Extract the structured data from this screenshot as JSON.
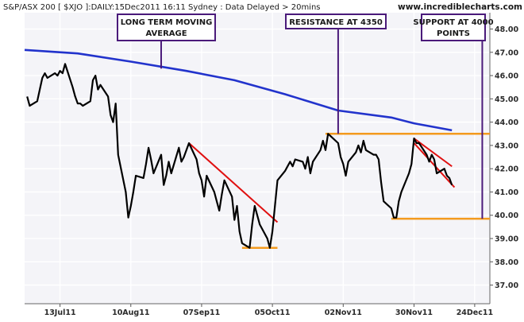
{
  "header": {
    "title": "S&P/ASX 200 [ $XJO ]:DAILY:15Dec2011 16:11 Sydney : Data Delayed > 20mins",
    "site": "www.incrediblecharts.com"
  },
  "colors": {
    "background": "#ffffff",
    "plot_background": "#f4f4f8",
    "price_line": "#000000",
    "moving_average": "#2233cc",
    "trendline": "#e01010",
    "support_resistance": "#f39a1e",
    "annotation_border": "#4a1a7a",
    "grid": "#ffffff"
  },
  "chart_data": {
    "type": "line",
    "title": "S&P/ASX 200 [ $XJO ]:DAILY:15Dec2011 16:11 Sydney : Data Delayed > 20mins",
    "xlabel": "",
    "ylabel": "",
    "x_axis": {
      "type": "date",
      "range": [
        "2011-06-29",
        "2011-12-30"
      ],
      "tick_labels": [
        "13Jul11",
        "10Aug11",
        "07Sep11",
        "05Oct11",
        "02Nov11",
        "30Nov11",
        "24Dec11"
      ],
      "tick_dates": [
        "2011-07-13",
        "2011-08-10",
        "2011-09-07",
        "2011-10-05",
        "2011-11-02",
        "2011-11-30",
        "2011-12-24"
      ]
    },
    "y_axis": {
      "position": "right",
      "range": [
        36.2,
        48.7
      ],
      "tick_values": [
        37,
        38,
        39,
        40,
        41,
        42,
        43,
        44,
        45,
        46,
        47,
        48
      ],
      "tick_labels": [
        "37.00",
        "38.00",
        "39.00",
        "40.00",
        "41.00",
        "42.00",
        "43.00",
        "44.00",
        "45.00",
        "46.00",
        "47.00",
        "48.00"
      ]
    },
    "grid": true,
    "series": [
      {
        "kind": "price",
        "points": [
          [
            "2011-06-30",
            45.1
          ],
          [
            "2011-07-01",
            44.7
          ],
          [
            "2011-07-04",
            44.9
          ],
          [
            "2011-07-05",
            45.4
          ],
          [
            "2011-07-06",
            45.9
          ],
          [
            "2011-07-07",
            46.1
          ],
          [
            "2011-07-08",
            45.9
          ],
          [
            "2011-07-11",
            46.1
          ],
          [
            "2011-07-12",
            46.0
          ],
          [
            "2011-07-13",
            46.2
          ],
          [
            "2011-07-14",
            46.1
          ],
          [
            "2011-07-15",
            46.5
          ],
          [
            "2011-07-18",
            45.5
          ],
          [
            "2011-07-19",
            45.1
          ],
          [
            "2011-07-20",
            44.8
          ],
          [
            "2011-07-21",
            44.8
          ],
          [
            "2011-07-22",
            44.7
          ],
          [
            "2011-07-25",
            44.9
          ],
          [
            "2011-07-26",
            45.8
          ],
          [
            "2011-07-27",
            46.0
          ],
          [
            "2011-07-28",
            45.4
          ],
          [
            "2011-07-29",
            45.6
          ],
          [
            "2011-08-01",
            45.1
          ],
          [
            "2011-08-02",
            44.3
          ],
          [
            "2011-08-03",
            44.0
          ],
          [
            "2011-08-04",
            44.8
          ],
          [
            "2011-08-05",
            42.6
          ],
          [
            "2011-08-08",
            41.0
          ],
          [
            "2011-08-09",
            39.9
          ],
          [
            "2011-08-10",
            40.4
          ],
          [
            "2011-08-11",
            41.0
          ],
          [
            "2011-08-12",
            41.7
          ],
          [
            "2011-08-15",
            41.6
          ],
          [
            "2011-08-16",
            42.2
          ],
          [
            "2011-08-17",
            42.9
          ],
          [
            "2011-08-18",
            42.4
          ],
          [
            "2011-08-19",
            41.8
          ],
          [
            "2011-08-22",
            42.6
          ],
          [
            "2011-08-23",
            41.3
          ],
          [
            "2011-08-24",
            41.7
          ],
          [
            "2011-08-25",
            42.3
          ],
          [
            "2011-08-26",
            41.8
          ],
          [
            "2011-08-29",
            42.9
          ],
          [
            "2011-08-30",
            42.3
          ],
          [
            "2011-08-31",
            42.5
          ],
          [
            "2011-09-01",
            42.8
          ],
          [
            "2011-09-02",
            43.1
          ],
          [
            "2011-09-05",
            42.4
          ],
          [
            "2011-09-06",
            41.8
          ],
          [
            "2011-09-07",
            41.5
          ],
          [
            "2011-09-08",
            40.8
          ],
          [
            "2011-09-09",
            41.7
          ],
          [
            "2011-09-12",
            41.0
          ],
          [
            "2011-09-13",
            40.6
          ],
          [
            "2011-09-14",
            40.2
          ],
          [
            "2011-09-15",
            40.9
          ],
          [
            "2011-09-16",
            41.5
          ],
          [
            "2011-09-19",
            40.8
          ],
          [
            "2011-09-20",
            39.8
          ],
          [
            "2011-09-21",
            40.4
          ],
          [
            "2011-09-22",
            39.3
          ],
          [
            "2011-09-23",
            38.8
          ],
          [
            "2011-09-26",
            38.6
          ],
          [
            "2011-09-27",
            39.6
          ],
          [
            "2011-09-28",
            40.4
          ],
          [
            "2011-09-29",
            40.0
          ],
          [
            "2011-09-30",
            39.6
          ],
          [
            "2011-10-03",
            39.0
          ],
          [
            "2011-10-04",
            38.6
          ],
          [
            "2011-10-05",
            39.3
          ],
          [
            "2011-10-06",
            40.4
          ],
          [
            "2011-10-07",
            41.5
          ],
          [
            "2011-10-10",
            41.9
          ],
          [
            "2011-10-11",
            42.1
          ],
          [
            "2011-10-12",
            42.3
          ],
          [
            "2011-10-13",
            42.1
          ],
          [
            "2011-10-14",
            42.4
          ],
          [
            "2011-10-17",
            42.3
          ],
          [
            "2011-10-18",
            42.0
          ],
          [
            "2011-10-19",
            42.5
          ],
          [
            "2011-10-20",
            41.8
          ],
          [
            "2011-10-21",
            42.3
          ],
          [
            "2011-10-24",
            42.8
          ],
          [
            "2011-10-25",
            43.2
          ],
          [
            "2011-10-26",
            42.8
          ],
          [
            "2011-10-27",
            43.5
          ],
          [
            "2011-10-28",
            43.4
          ],
          [
            "2011-10-31",
            43.1
          ],
          [
            "2011-11-01",
            42.5
          ],
          [
            "2011-11-02",
            42.2
          ],
          [
            "2011-11-03",
            41.7
          ],
          [
            "2011-11-04",
            42.3
          ],
          [
            "2011-11-07",
            42.7
          ],
          [
            "2011-11-08",
            43.0
          ],
          [
            "2011-11-09",
            42.7
          ],
          [
            "2011-11-10",
            43.2
          ],
          [
            "2011-11-11",
            42.8
          ],
          [
            "2011-11-14",
            42.6
          ],
          [
            "2011-11-15",
            42.6
          ],
          [
            "2011-11-16",
            42.4
          ],
          [
            "2011-11-17",
            41.4
          ],
          [
            "2011-11-18",
            40.6
          ],
          [
            "2011-11-21",
            40.3
          ],
          [
            "2011-11-22",
            39.9
          ],
          [
            "2011-11-23",
            39.9
          ],
          [
            "2011-11-24",
            40.6
          ],
          [
            "2011-11-25",
            41.0
          ],
          [
            "2011-11-28",
            41.8
          ],
          [
            "2011-11-29",
            42.2
          ],
          [
            "2011-11-30",
            43.3
          ],
          [
            "2011-12-01",
            43.1
          ],
          [
            "2011-12-02",
            43.1
          ],
          [
            "2011-12-05",
            42.6
          ],
          [
            "2011-12-06",
            42.3
          ],
          [
            "2011-12-07",
            42.6
          ],
          [
            "2011-12-08",
            42.4
          ],
          [
            "2011-12-09",
            41.8
          ],
          [
            "2011-12-12",
            42.0
          ],
          [
            "2011-12-13",
            41.7
          ],
          [
            "2011-12-14",
            41.6
          ],
          [
            "2011-12-15",
            41.3
          ]
        ]
      },
      {
        "kind": "moving_average",
        "points": [
          [
            "2011-06-29",
            47.1
          ],
          [
            "2011-07-20",
            46.95
          ],
          [
            "2011-08-10",
            46.6
          ],
          [
            "2011-09-01",
            46.2
          ],
          [
            "2011-09-20",
            45.8
          ],
          [
            "2011-10-10",
            45.2
          ],
          [
            "2011-10-31",
            44.5
          ],
          [
            "2011-11-21",
            44.2
          ],
          [
            "2011-11-30",
            43.95
          ],
          [
            "2011-12-15",
            43.65
          ]
        ]
      }
    ],
    "lines": [
      {
        "kind": "resistance",
        "y": 43.5,
        "x": [
          "2011-10-26",
          "2011-12-30"
        ]
      },
      {
        "kind": "support",
        "y": 39.85,
        "x": [
          "2011-11-21",
          "2011-12-30"
        ]
      },
      {
        "kind": "support",
        "y": 38.6,
        "x": [
          "2011-09-23",
          "2011-10-07"
        ]
      },
      {
        "kind": "trendline",
        "points": [
          [
            "2011-09-02",
            43.1
          ],
          [
            "2011-10-07",
            39.7
          ]
        ]
      },
      {
        "kind": "trendline",
        "points": [
          [
            "2011-11-30",
            43.3
          ],
          [
            "2011-12-15",
            42.1
          ]
        ]
      },
      {
        "kind": "trendline",
        "points": [
          [
            "2011-11-30",
            43.1
          ],
          [
            "2011-12-16",
            41.2
          ]
        ]
      }
    ],
    "annotations": [
      {
        "text": "LONG TERM MOVING AVERAGE",
        "lines": [
          "LONG TERM MOVING",
          "AVERAGE"
        ],
        "points_to": [
          "2011-08-22",
          46.3
        ]
      },
      {
        "text": "RESISTANCE AT 4350",
        "lines": [
          "RESISTANCE AT 4350"
        ],
        "points_to": [
          "2011-10-31",
          43.5
        ]
      },
      {
        "text": "SUPPORT AT 4000 POINTS",
        "lines": [
          "SUPPORT AT 4000",
          "POINTS"
        ],
        "points_to": [
          "2011-12-27",
          39.85
        ]
      }
    ]
  }
}
